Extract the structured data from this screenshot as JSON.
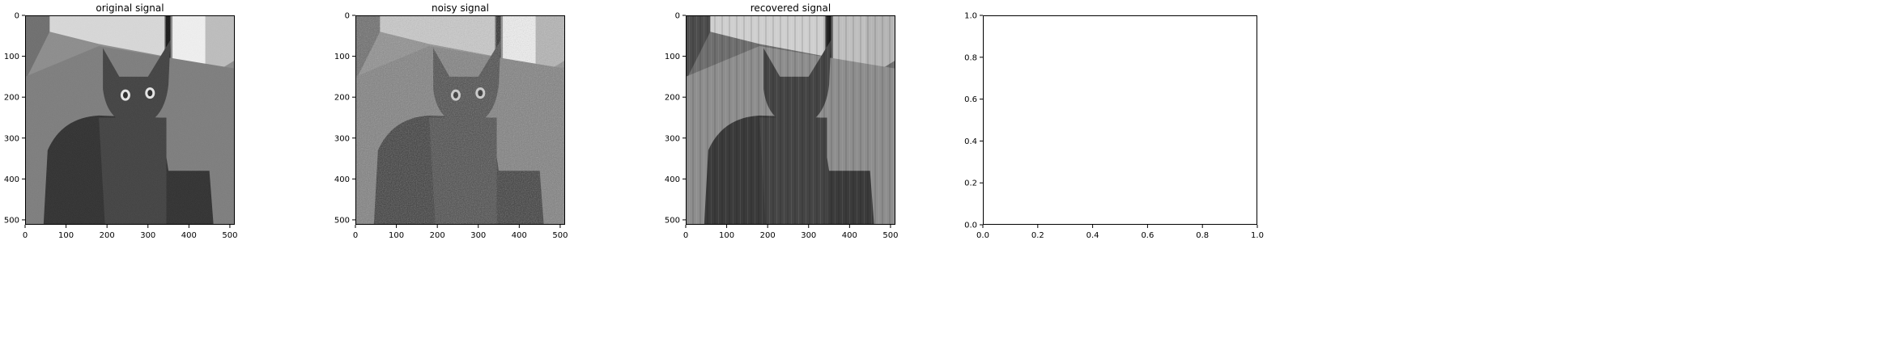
{
  "figure": {
    "background": "#ffffff",
    "axis_color": "#000000"
  },
  "chart_data": [
    {
      "type": "image",
      "title": "original signal",
      "image_description": "grayscale photo of a grey cat sitting on carpet",
      "image_style": "original",
      "xlim": [
        0,
        512
      ],
      "ylim": [
        512,
        0
      ],
      "xticks": [
        0,
        100,
        200,
        300,
        400,
        500
      ],
      "xtick_labels": [
        "0",
        "100",
        "200",
        "300",
        "400",
        "500"
      ],
      "yticks": [
        0,
        100,
        200,
        300,
        400,
        500
      ],
      "ytick_labels": [
        "0",
        "100",
        "200",
        "300",
        "400",
        "500"
      ]
    },
    {
      "type": "image",
      "title": "noisy signal",
      "image_description": "same cat photo with heavy additive grain noise",
      "image_style": "noisy",
      "xlim": [
        0,
        512
      ],
      "ylim": [
        512,
        0
      ],
      "xticks": [
        0,
        100,
        200,
        300,
        400,
        500
      ],
      "xtick_labels": [
        "0",
        "100",
        "200",
        "300",
        "400",
        "500"
      ],
      "yticks": [
        0,
        100,
        200,
        300,
        400,
        500
      ],
      "ytick_labels": [
        "0",
        "100",
        "200",
        "300",
        "400",
        "500"
      ]
    },
    {
      "type": "image",
      "title": "recovered signal",
      "image_description": "reconstructed cat image with vertical streak artifacts",
      "image_style": "recovered",
      "xlim": [
        0,
        512
      ],
      "ylim": [
        512,
        0
      ],
      "xticks": [
        0,
        100,
        200,
        300,
        400,
        500
      ],
      "xtick_labels": [
        "0",
        "100",
        "200",
        "300",
        "400",
        "500"
      ],
      "yticks": [
        0,
        100,
        200,
        300,
        400,
        500
      ],
      "ytick_labels": [
        "0",
        "100",
        "200",
        "300",
        "400",
        "500"
      ]
    },
    {
      "type": "empty",
      "title": "",
      "xlim": [
        0,
        1
      ],
      "ylim": [
        0,
        1
      ],
      "xticks": [
        0,
        0.2,
        0.4,
        0.6,
        0.8,
        1.0
      ],
      "xtick_labels": [
        "0.0",
        "0.2",
        "0.4",
        "0.6",
        "0.8",
        "1.0"
      ],
      "yticks": [
        0,
        0.2,
        0.4,
        0.6,
        0.8,
        1.0
      ],
      "ytick_labels": [
        "0.0",
        "0.2",
        "0.4",
        "0.6",
        "0.8",
        "1.0"
      ]
    }
  ]
}
